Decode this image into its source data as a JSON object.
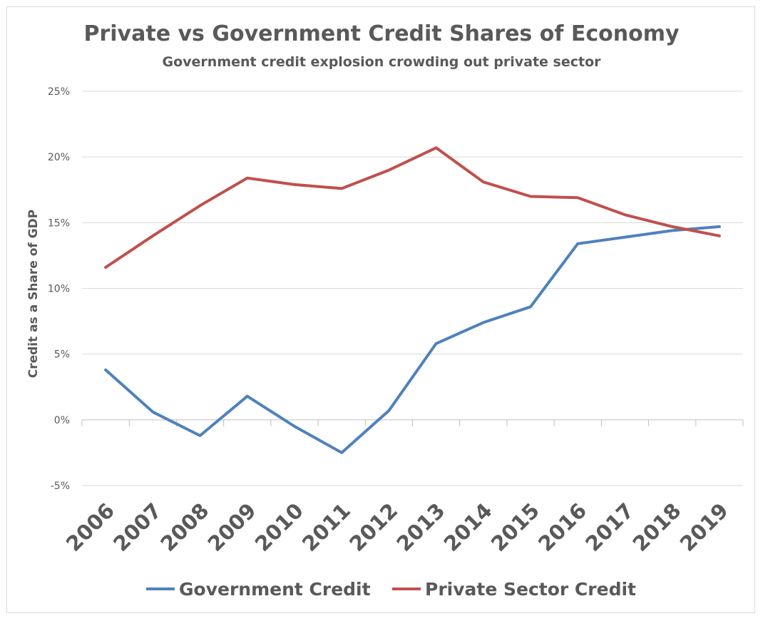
{
  "chart_data": {
    "type": "line",
    "title": "Private vs Government Credit Shares of Economy",
    "subtitle": "Government credit explosion crowding out private sector",
    "xlabel": "",
    "ylabel": "Credit as a Share of GDP",
    "categories": [
      "2006",
      "2007",
      "2008",
      "2009",
      "2010",
      "2011",
      "2012",
      "2013",
      "2014",
      "2015",
      "2016",
      "2017",
      "2018",
      "2019"
    ],
    "ylim": [
      -5,
      25
    ],
    "yticks": [
      -5,
      0,
      5,
      10,
      15,
      20,
      25
    ],
    "ytick_labels": [
      "-5%",
      "0%",
      "5%",
      "10%",
      "15%",
      "20%",
      "25%"
    ],
    "grid": true,
    "legend_position": "bottom",
    "series": [
      {
        "name": "Government Credit",
        "color": "#4f81bd",
        "values": [
          3.8,
          0.6,
          -1.2,
          1.8,
          -0.5,
          -2.5,
          0.7,
          5.8,
          7.4,
          8.6,
          13.4,
          13.9,
          14.4,
          14.7
        ]
      },
      {
        "name": "Private Sector Credit",
        "color": "#c0504d",
        "values": [
          11.6,
          14.0,
          16.3,
          18.4,
          17.9,
          17.6,
          19.0,
          20.7,
          18.1,
          17.0,
          16.9,
          15.6,
          14.7,
          14.0
        ]
      }
    ]
  }
}
